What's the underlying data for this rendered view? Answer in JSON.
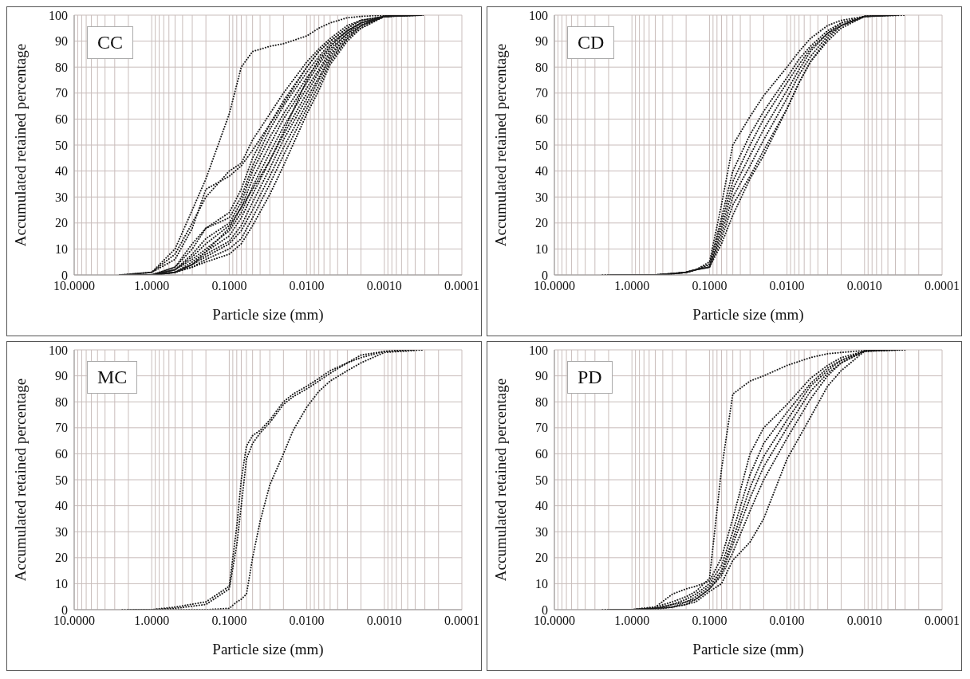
{
  "chart_data": [
    {
      "type": "line",
      "title": "CC",
      "xlabel": "Particle size (mm)",
      "ylabel": "Accumulated retained percentage",
      "log": "x",
      "grid": true,
      "marker": "none",
      "line_style": "dotted",
      "xlim": [
        10,
        0.0001
      ],
      "xticks": [
        {
          "value": 10,
          "label": "10.0000"
        },
        {
          "value": 1,
          "label": "1.0000"
        },
        {
          "value": 0.1,
          "label": "0.1000"
        },
        {
          "value": 0.01,
          "label": "0.0100"
        },
        {
          "value": 0.001,
          "label": "0.0010"
        },
        {
          "value": 0.0001,
          "label": "0.0001"
        }
      ],
      "ylim": [
        0,
        100
      ],
      "yticks": [
        0,
        10,
        20,
        30,
        40,
        50,
        60,
        70,
        80,
        90,
        100
      ],
      "series": [
        {
          "color": "#1a1a1a",
          "x": [
            2.6,
            1,
            0.5,
            0.3,
            0.2,
            0.1,
            0.07,
            0.05,
            0.03,
            0.02,
            0.01,
            0.007,
            0.005,
            0.003,
            0.002,
            0.001,
            0.0006
          ],
          "values": [
            0,
            1,
            10,
            25,
            37,
            62,
            80,
            86,
            88,
            89,
            92,
            95,
            97,
            99,
            99.5,
            100,
            100
          ]
        },
        {
          "color": "#1a1a1a",
          "x": [
            2.5,
            1,
            0.5,
            0.3,
            0.2,
            0.1,
            0.07,
            0.05,
            0.03,
            0.02,
            0.01,
            0.007,
            0.005,
            0.003,
            0.002,
            0.001,
            0.00048
          ],
          "values": [
            0,
            1,
            8,
            20,
            30,
            40,
            43,
            52,
            62,
            70,
            82,
            87,
            91,
            96,
            98,
            99.5,
            100
          ]
        },
        {
          "color": "#1a1a1a",
          "x": [
            2.4,
            1,
            0.5,
            0.3,
            0.2,
            0.1,
            0.07,
            0.05,
            0.03,
            0.02,
            0.01,
            0.007,
            0.005,
            0.003,
            0.002,
            0.001,
            0.00036
          ],
          "values": [
            0,
            1,
            6,
            18,
            33,
            38,
            42,
            48,
            58,
            66,
            80,
            86,
            90,
            95,
            98,
            99.5,
            100
          ]
        },
        {
          "color": "#1a1a1a",
          "x": [
            2.3,
            1,
            0.5,
            0.3,
            0.2,
            0.1,
            0.07,
            0.05,
            0.03,
            0.02,
            0.01,
            0.007,
            0.005,
            0.003,
            0.002,
            0.001,
            0.00058
          ],
          "values": [
            0,
            0,
            3,
            10,
            18,
            22,
            30,
            42,
            56,
            65,
            78,
            84,
            89,
            94,
            97,
            99.5,
            100
          ]
        },
        {
          "color": "#1a1a1a",
          "x": [
            2.2,
            1,
            0.5,
            0.3,
            0.2,
            0.1,
            0.07,
            0.05,
            0.03,
            0.02,
            0.01,
            0.007,
            0.005,
            0.003,
            0.002,
            0.001,
            0.00045
          ],
          "values": [
            0,
            0,
            3,
            12,
            18,
            24,
            33,
            45,
            58,
            67,
            80,
            86,
            90,
            95,
            98,
            99.5,
            100
          ]
        },
        {
          "color": "#1a1a1a",
          "x": [
            2.1,
            1,
            0.5,
            0.3,
            0.2,
            0.1,
            0.07,
            0.05,
            0.03,
            0.02,
            0.01,
            0.007,
            0.005,
            0.003,
            0.002,
            0.001,
            0.00034
          ],
          "values": [
            0,
            0,
            2,
            8,
            14,
            20,
            28,
            40,
            53,
            62,
            76,
            82,
            88,
            94,
            97,
            99.5,
            100
          ]
        },
        {
          "color": "#1a1a1a",
          "x": [
            2,
            1,
            0.5,
            0.3,
            0.2,
            0.1,
            0.07,
            0.05,
            0.03,
            0.02,
            0.01,
            0.007,
            0.005,
            0.003,
            0.002,
            0.001,
            0.00055
          ],
          "values": [
            0,
            0,
            2,
            7,
            12,
            19,
            26,
            37,
            50,
            60,
            74,
            81,
            87,
            93,
            97,
            99.5,
            100
          ]
        },
        {
          "color": "#1a1a1a",
          "x": [
            1.9,
            1,
            0.5,
            0.3,
            0.2,
            0.1,
            0.07,
            0.05,
            0.03,
            0.02,
            0.01,
            0.007,
            0.005,
            0.003,
            0.002,
            0.001,
            0.00043
          ],
          "values": [
            0,
            0,
            2,
            6,
            10,
            17,
            24,
            34,
            47,
            57,
            72,
            79,
            86,
            93,
            96,
            99.5,
            100
          ]
        },
        {
          "color": "#1a1a1a",
          "x": [
            1.8,
            1,
            0.5,
            0.3,
            0.2,
            0.1,
            0.07,
            0.05,
            0.03,
            0.02,
            0.01,
            0.007,
            0.005,
            0.003,
            0.002,
            0.001,
            0.00032
          ],
          "values": [
            0,
            0,
            1,
            5,
            9,
            15,
            22,
            31,
            44,
            54,
            70,
            78,
            85,
            92,
            96,
            99.5,
            100
          ]
        },
        {
          "color": "#1a1a1a",
          "x": [
            1.7,
            1,
            0.5,
            0.3,
            0.2,
            0.1,
            0.07,
            0.05,
            0.03,
            0.02,
            0.01,
            0.007,
            0.005,
            0.003,
            0.002,
            0.001,
            0.00053
          ],
          "values": [
            0,
            0,
            1,
            4,
            8,
            13,
            19,
            28,
            41,
            52,
            68,
            76,
            84,
            92,
            96,
            99.5,
            100
          ]
        },
        {
          "color": "#1a1a1a",
          "x": [
            1.6,
            1,
            0.5,
            0.3,
            0.2,
            0.1,
            0.07,
            0.05,
            0.03,
            0.02,
            0.01,
            0.007,
            0.005,
            0.003,
            0.002,
            0.001,
            0.0004
          ],
          "values": [
            0,
            0,
            1,
            4,
            7,
            12,
            17,
            25,
            38,
            49,
            66,
            75,
            83,
            91,
            96,
            99.5,
            100
          ]
        },
        {
          "color": "#1a1a1a",
          "x": [
            1.5,
            1,
            0.5,
            0.3,
            0.2,
            0.1,
            0.07,
            0.05,
            0.03,
            0.02,
            0.01,
            0.007,
            0.005,
            0.003,
            0.002,
            0.001,
            0.0003
          ],
          "values": [
            0,
            0,
            1,
            3,
            6,
            10,
            14,
            22,
            35,
            46,
            64,
            73,
            82,
            91,
            95,
            99.5,
            100
          ]
        },
        {
          "color": "#1a1a1a",
          "x": [
            1.4,
            1,
            0.5,
            0.3,
            0.2,
            0.1,
            0.07,
            0.05,
            0.03,
            0.02,
            0.01,
            0.007,
            0.005,
            0.003,
            0.002,
            0.001,
            0.0005
          ],
          "values": [
            0,
            0,
            1,
            3,
            5,
            8,
            12,
            19,
            31,
            42,
            62,
            71,
            81,
            90,
            95,
            99.5,
            100
          ]
        },
        {
          "color": "#1a1a1a",
          "x": [
            1.3,
            1,
            0.5,
            0.3,
            0.2,
            0.1,
            0.07,
            0.05,
            0.03,
            0.02,
            0.01,
            0.007,
            0.005,
            0.003,
            0.002,
            0.001,
            0.00038
          ],
          "values": [
            0,
            0,
            1,
            4,
            9,
            18,
            26,
            33,
            44,
            55,
            75,
            83,
            88,
            94,
            97,
            99.5,
            100
          ]
        }
      ]
    },
    {
      "type": "line",
      "title": "CD",
      "xlabel": "Particle size (mm)",
      "ylabel": "Accumulated retained percentage",
      "log": "x",
      "grid": true,
      "marker": "none",
      "line_style": "dotted",
      "xlim": [
        10,
        0.0001
      ],
      "xticks": [
        {
          "value": 10,
          "label": "10.0000"
        },
        {
          "value": 1,
          "label": "1.0000"
        },
        {
          "value": 0.1,
          "label": "0.1000"
        },
        {
          "value": 0.01,
          "label": "0.0100"
        },
        {
          "value": 0.001,
          "label": "0.0010"
        },
        {
          "value": 0.0001,
          "label": "0.0001"
        }
      ],
      "ylim": [
        0,
        100
      ],
      "yticks": [
        0,
        10,
        20,
        30,
        40,
        50,
        60,
        70,
        80,
        90,
        100
      ],
      "series": [
        {
          "color": "#1a1a1a",
          "x": [
            2.4,
            1,
            0.5,
            0.3,
            0.2,
            0.15,
            0.1,
            0.07,
            0.05,
            0.03,
            0.02,
            0.01,
            0.007,
            0.005,
            0.003,
            0.002,
            0.001,
            0.0006
          ],
          "values": [
            0,
            0,
            0,
            0.5,
            1,
            2,
            5,
            27,
            50,
            61,
            69,
            80,
            86,
            91,
            96,
            98,
            99.5,
            100
          ]
        },
        {
          "color": "#1a1a1a",
          "x": [
            2.2,
            1,
            0.5,
            0.3,
            0.2,
            0.15,
            0.1,
            0.07,
            0.05,
            0.03,
            0.02,
            0.01,
            0.007,
            0.005,
            0.003,
            0.002,
            0.001,
            0.00055
          ],
          "values": [
            0,
            0,
            0,
            0.5,
            1,
            2,
            4,
            22,
            40,
            54,
            63,
            76,
            83,
            88,
            94,
            97,
            99.5,
            100
          ]
        },
        {
          "color": "#1a1a1a",
          "x": [
            2,
            1,
            0.5,
            0.3,
            0.2,
            0.15,
            0.1,
            0.07,
            0.05,
            0.03,
            0.02,
            0.01,
            0.007,
            0.005,
            0.003,
            0.002,
            0.001,
            0.0005
          ],
          "values": [
            0,
            0,
            0,
            0.5,
            1,
            2,
            4,
            20,
            36,
            50,
            60,
            74,
            81,
            87,
            93,
            97,
            99.5,
            100
          ]
        },
        {
          "color": "#1a1a1a",
          "x": [
            1.9,
            1,
            0.5,
            0.3,
            0.2,
            0.15,
            0.1,
            0.07,
            0.05,
            0.03,
            0.02,
            0.01,
            0.007,
            0.005,
            0.003,
            0.002,
            0.001,
            0.00045
          ],
          "values": [
            0,
            0,
            0,
            0.5,
            1,
            2,
            3,
            18,
            33,
            46,
            56,
            71,
            79,
            86,
            93,
            96,
            99.5,
            100
          ]
        },
        {
          "color": "#1a1a1a",
          "x": [
            1.8,
            1,
            0.5,
            0.3,
            0.2,
            0.15,
            0.1,
            0.07,
            0.05,
            0.03,
            0.02,
            0.01,
            0.007,
            0.005,
            0.003,
            0.002,
            0.001,
            0.0004
          ],
          "values": [
            0,
            0,
            0,
            0.5,
            1,
            2,
            3,
            16,
            30,
            42,
            52,
            68,
            77,
            84,
            92,
            96,
            99.5,
            100
          ]
        },
        {
          "color": "#1a1a1a",
          "x": [
            1.7,
            1,
            0.5,
            0.3,
            0.2,
            0.15,
            0.1,
            0.07,
            0.05,
            0.03,
            0.02,
            0.01,
            0.007,
            0.005,
            0.003,
            0.002,
            0.001,
            0.00035
          ],
          "values": [
            0,
            0,
            0,
            0.5,
            1,
            2,
            3,
            14,
            27,
            38,
            48,
            64,
            74,
            82,
            91,
            96,
            99.5,
            100
          ]
        },
        {
          "color": "#1a1a1a",
          "x": [
            1.6,
            1,
            0.5,
            0.3,
            0.2,
            0.15,
            0.1,
            0.07,
            0.05,
            0.03,
            0.02,
            0.01,
            0.007,
            0.005,
            0.003,
            0.002,
            0.001,
            0.0003
          ],
          "values": [
            0,
            0,
            0,
            0.5,
            1,
            2,
            3,
            12,
            23,
            37,
            46,
            64,
            74,
            82,
            90,
            95,
            99.5,
            100
          ]
        }
      ]
    },
    {
      "type": "line",
      "title": "MC",
      "xlabel": "Particle size (mm)",
      "ylabel": "Accumulated retained percentage",
      "log": "x",
      "grid": true,
      "marker": "none",
      "line_style": "dotted",
      "xlim": [
        10,
        0.0001
      ],
      "xticks": [
        {
          "value": 10,
          "label": "10.0000"
        },
        {
          "value": 1,
          "label": "1.0000"
        },
        {
          "value": 0.1,
          "label": "0.1000"
        },
        {
          "value": 0.01,
          "label": "0.0100"
        },
        {
          "value": 0.001,
          "label": "0.0010"
        },
        {
          "value": 0.0001,
          "label": "0.0001"
        }
      ],
      "ylim": [
        0,
        100
      ],
      "yticks": [
        0,
        10,
        20,
        30,
        40,
        50,
        60,
        70,
        80,
        90,
        100
      ],
      "series": [
        {
          "color": "#1a1a1a",
          "x": [
            2.4,
            1,
            0.5,
            0.2,
            0.1,
            0.08,
            0.07,
            0.06,
            0.05,
            0.04,
            0.03,
            0.02,
            0.015,
            0.01,
            0.007,
            0.005,
            0.003,
            0.002,
            0.001,
            0.0005
          ],
          "values": [
            0,
            0,
            1,
            3,
            9,
            32,
            50,
            63,
            67,
            69,
            73,
            80,
            83,
            86,
            89,
            92,
            95,
            98,
            99.4,
            100
          ]
        },
        {
          "color": "#1a1a1a",
          "x": [
            2,
            1,
            0.5,
            0.2,
            0.1,
            0.08,
            0.07,
            0.06,
            0.05,
            0.04,
            0.03,
            0.02,
            0.015,
            0.01,
            0.007,
            0.005,
            0.003,
            0.002,
            0.001,
            0.0004
          ],
          "values": [
            0,
            0,
            0.5,
            2,
            8,
            25,
            40,
            58,
            64,
            68,
            72,
            79,
            82,
            85,
            88,
            91,
            95,
            97,
            99.4,
            100
          ]
        },
        {
          "color": "#1a1a1a",
          "x": [
            1.7,
            1,
            0.5,
            0.2,
            0.1,
            0.08,
            0.07,
            0.06,
            0.05,
            0.04,
            0.03,
            0.02,
            0.015,
            0.01,
            0.007,
            0.005,
            0.003,
            0.002,
            0.001,
            0.00032
          ],
          "values": [
            0,
            0,
            0,
            0,
            0.5,
            3,
            4,
            6,
            20,
            34,
            48,
            60,
            69,
            78,
            84,
            88,
            92,
            95,
            99,
            100
          ]
        }
      ]
    },
    {
      "type": "line",
      "title": "PD",
      "xlabel": "Particle size (mm)",
      "ylabel": "Accumulated retained percentage",
      "log": "x",
      "grid": true,
      "marker": "none",
      "line_style": "dotted",
      "xlim": [
        10,
        0.0001
      ],
      "xticks": [
        {
          "value": 10,
          "label": "10.0000"
        },
        {
          "value": 1,
          "label": "1.0000"
        },
        {
          "value": 0.1,
          "label": "0.1000"
        },
        {
          "value": 0.01,
          "label": "0.0100"
        },
        {
          "value": 0.001,
          "label": "0.0010"
        },
        {
          "value": 0.0001,
          "label": "0.0001"
        }
      ],
      "ylim": [
        0,
        100
      ],
      "yticks": [
        0,
        10,
        20,
        30,
        40,
        50,
        60,
        70,
        80,
        90,
        100
      ],
      "series": [
        {
          "color": "#1a1a1a",
          "x": [
            2.4,
            1,
            0.5,
            0.3,
            0.2,
            0.15,
            0.1,
            0.07,
            0.05,
            0.03,
            0.02,
            0.01,
            0.005,
            0.003,
            0.002,
            0.001,
            0.0006
          ],
          "values": [
            0,
            0,
            1,
            3,
            5,
            7,
            12,
            54,
            83,
            88,
            90,
            94,
            97,
            98.5,
            99,
            99.7,
            100
          ]
        },
        {
          "color": "#1a1a1a",
          "x": [
            2.2,
            1,
            0.5,
            0.3,
            0.2,
            0.15,
            0.1,
            0.07,
            0.05,
            0.03,
            0.02,
            0.01,
            0.005,
            0.003,
            0.002,
            0.001,
            0.00055
          ],
          "values": [
            0,
            0,
            1,
            6,
            8,
            9,
            11,
            20,
            35,
            60,
            70,
            79,
            89,
            94,
            97,
            99.5,
            100
          ]
        },
        {
          "color": "#1a1a1a",
          "x": [
            2,
            1,
            0.5,
            0.3,
            0.2,
            0.15,
            0.1,
            0.07,
            0.05,
            0.03,
            0.02,
            0.01,
            0.005,
            0.003,
            0.002,
            0.001,
            0.0005
          ],
          "values": [
            0,
            0,
            0.5,
            2,
            4,
            6,
            10,
            17,
            30,
            52,
            64,
            76,
            87,
            93,
            96,
            99.5,
            100
          ]
        },
        {
          "color": "#1a1a1a",
          "x": [
            1.9,
            1,
            0.5,
            0.3,
            0.2,
            0.15,
            0.1,
            0.07,
            0.05,
            0.03,
            0.02,
            0.01,
            0.005,
            0.003,
            0.002,
            0.001,
            0.00045
          ],
          "values": [
            0,
            0,
            0.5,
            2,
            3,
            5,
            9,
            15,
            27,
            47,
            59,
            73,
            86,
            92,
            96,
            99.5,
            100
          ]
        },
        {
          "color": "#1a1a1a",
          "x": [
            1.8,
            1,
            0.5,
            0.3,
            0.2,
            0.15,
            0.1,
            0.07,
            0.05,
            0.03,
            0.02,
            0.01,
            0.005,
            0.003,
            0.002,
            0.001,
            0.0004
          ],
          "values": [
            0,
            0,
            0.5,
            1,
            3,
            4,
            8,
            14,
            25,
            43,
            55,
            70,
            84,
            91,
            95,
            99.5,
            100
          ]
        },
        {
          "color": "#1a1a1a",
          "x": [
            1.7,
            1,
            0.5,
            0.3,
            0.2,
            0.15,
            0.1,
            0.07,
            0.05,
            0.03,
            0.02,
            0.01,
            0.005,
            0.003,
            0.002,
            0.001,
            0.00035
          ],
          "values": [
            0,
            0,
            0.5,
            1,
            2,
            4,
            8,
            13,
            22,
            38,
            50,
            66,
            81,
            90,
            95,
            99.5,
            100
          ]
        },
        {
          "color": "#1a1a1a",
          "x": [
            1.6,
            1,
            0.5,
            0.3,
            0.2,
            0.15,
            0.1,
            0.07,
            0.05,
            0.03,
            0.02,
            0.01,
            0.005,
            0.003,
            0.002,
            0.001,
            0.0003
          ],
          "values": [
            0,
            0,
            0,
            1,
            2,
            3,
            7,
            10,
            19,
            26,
            35,
            58,
            74,
            86,
            92,
            99.5,
            100
          ]
        }
      ]
    }
  ]
}
